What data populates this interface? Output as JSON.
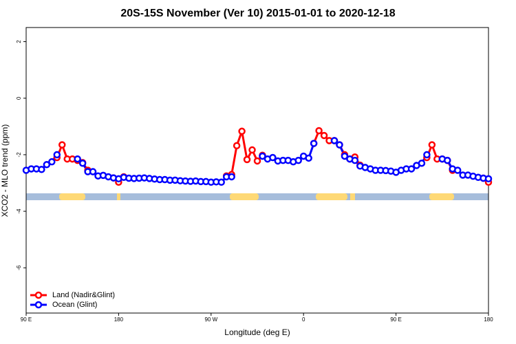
{
  "chart_data": {
    "type": "line",
    "title": "20S-15S November (Ver 10)   2015-01-01 to 2020-12-18",
    "xlabel": "Longitude (deg E)",
    "ylabel": "XCO2 - MLO trend (ppm)",
    "x": [
      90,
      95,
      100,
      105,
      110,
      115,
      120,
      125,
      130,
      135,
      140,
      145,
      150,
      155,
      160,
      165,
      170,
      175,
      180,
      185,
      190,
      195,
      200,
      205,
      210,
      215,
      220,
      225,
      230,
      235,
      240,
      245,
      250,
      255,
      260,
      265,
      270,
      275,
      280,
      285,
      290,
      295,
      300,
      305,
      310,
      315,
      320,
      325,
      330,
      335,
      340,
      345,
      350,
      355,
      360,
      365,
      370,
      375,
      380,
      385,
      390,
      395,
      400,
      405,
      410,
      415,
      420,
      425,
      430,
      435,
      440,
      445,
      450,
      455,
      460,
      465,
      470,
      475,
      480,
      485,
      490,
      495,
      500,
      505,
      510,
      515,
      520,
      525,
      530,
      535,
      540
    ],
    "series": [
      {
        "name": "Land (Nadir&Glint)",
        "color": "#ff0000",
        "values": [
          null,
          null,
          null,
          null,
          null,
          null,
          -2.1,
          -1.65,
          -2.15,
          -2.15,
          -2.2,
          -2.28,
          -2.55,
          null,
          null,
          null,
          null,
          -2.82,
          -2.97,
          -2.78,
          null,
          null,
          null,
          null,
          null,
          null,
          null,
          null,
          null,
          null,
          null,
          null,
          null,
          null,
          null,
          null,
          null,
          null,
          null,
          -2.75,
          -2.7,
          -1.68,
          -1.17,
          -2.17,
          -1.83,
          -2.22,
          -2.02,
          null,
          null,
          null,
          null,
          null,
          null,
          null,
          null,
          null,
          -1.6,
          -1.15,
          -1.32,
          -1.5,
          -1.5,
          -1.65,
          -2.0,
          -2.15,
          -2.08,
          -2.37,
          null,
          null,
          null,
          null,
          null,
          null,
          null,
          null,
          null,
          null,
          null,
          null,
          -2.1,
          -1.65,
          -2.15,
          -2.15,
          -2.2,
          -2.55,
          null,
          null,
          null,
          null,
          null,
          -2.83,
          -2.97
        ]
      },
      {
        "name": "Ocean (Glint)",
        "color": "#0000ff",
        "values": [
          -2.55,
          -2.5,
          -2.5,
          -2.52,
          -2.35,
          -2.25,
          -2.0,
          null,
          null,
          null,
          -2.15,
          -2.3,
          -2.6,
          -2.6,
          -2.75,
          -2.73,
          -2.78,
          -2.82,
          -2.85,
          -2.8,
          -2.83,
          -2.84,
          -2.83,
          -2.82,
          -2.84,
          -2.86,
          -2.88,
          -2.88,
          -2.9,
          -2.9,
          -2.92,
          -2.93,
          -2.94,
          -2.93,
          -2.95,
          -2.95,
          -2.97,
          -2.96,
          -2.97,
          -2.78,
          -2.78,
          null,
          null,
          null,
          null,
          null,
          -2.05,
          -2.15,
          -2.1,
          -2.22,
          -2.2,
          -2.2,
          -2.25,
          -2.2,
          -2.05,
          -2.12,
          -1.6,
          null,
          null,
          null,
          -1.5,
          -1.65,
          -2.05,
          -2.15,
          -2.2,
          -2.4,
          -2.45,
          -2.5,
          -2.55,
          -2.55,
          -2.56,
          -2.58,
          -2.62,
          -2.55,
          -2.5,
          -2.5,
          -2.38,
          -2.3,
          -2.0,
          null,
          null,
          -2.15,
          -2.2,
          -2.5,
          -2.55,
          -2.72,
          -2.72,
          -2.76,
          -2.8,
          -2.83,
          -2.85
        ]
      }
    ],
    "xlim": [
      90,
      540
    ],
    "xticks": [
      {
        "value": 90,
        "label": "90 E"
      },
      {
        "value": 180,
        "label": "180"
      },
      {
        "value": 270,
        "label": "90 W"
      },
      {
        "value": 360,
        "label": "0"
      },
      {
        "value": 450,
        "label": "90 E"
      },
      {
        "value": 540,
        "label": "180"
      }
    ],
    "ylim": [
      -7.6,
      2.5
    ],
    "yticks": [
      2,
      0,
      -2,
      -4,
      -6
    ],
    "legend": "bottom-left"
  }
}
